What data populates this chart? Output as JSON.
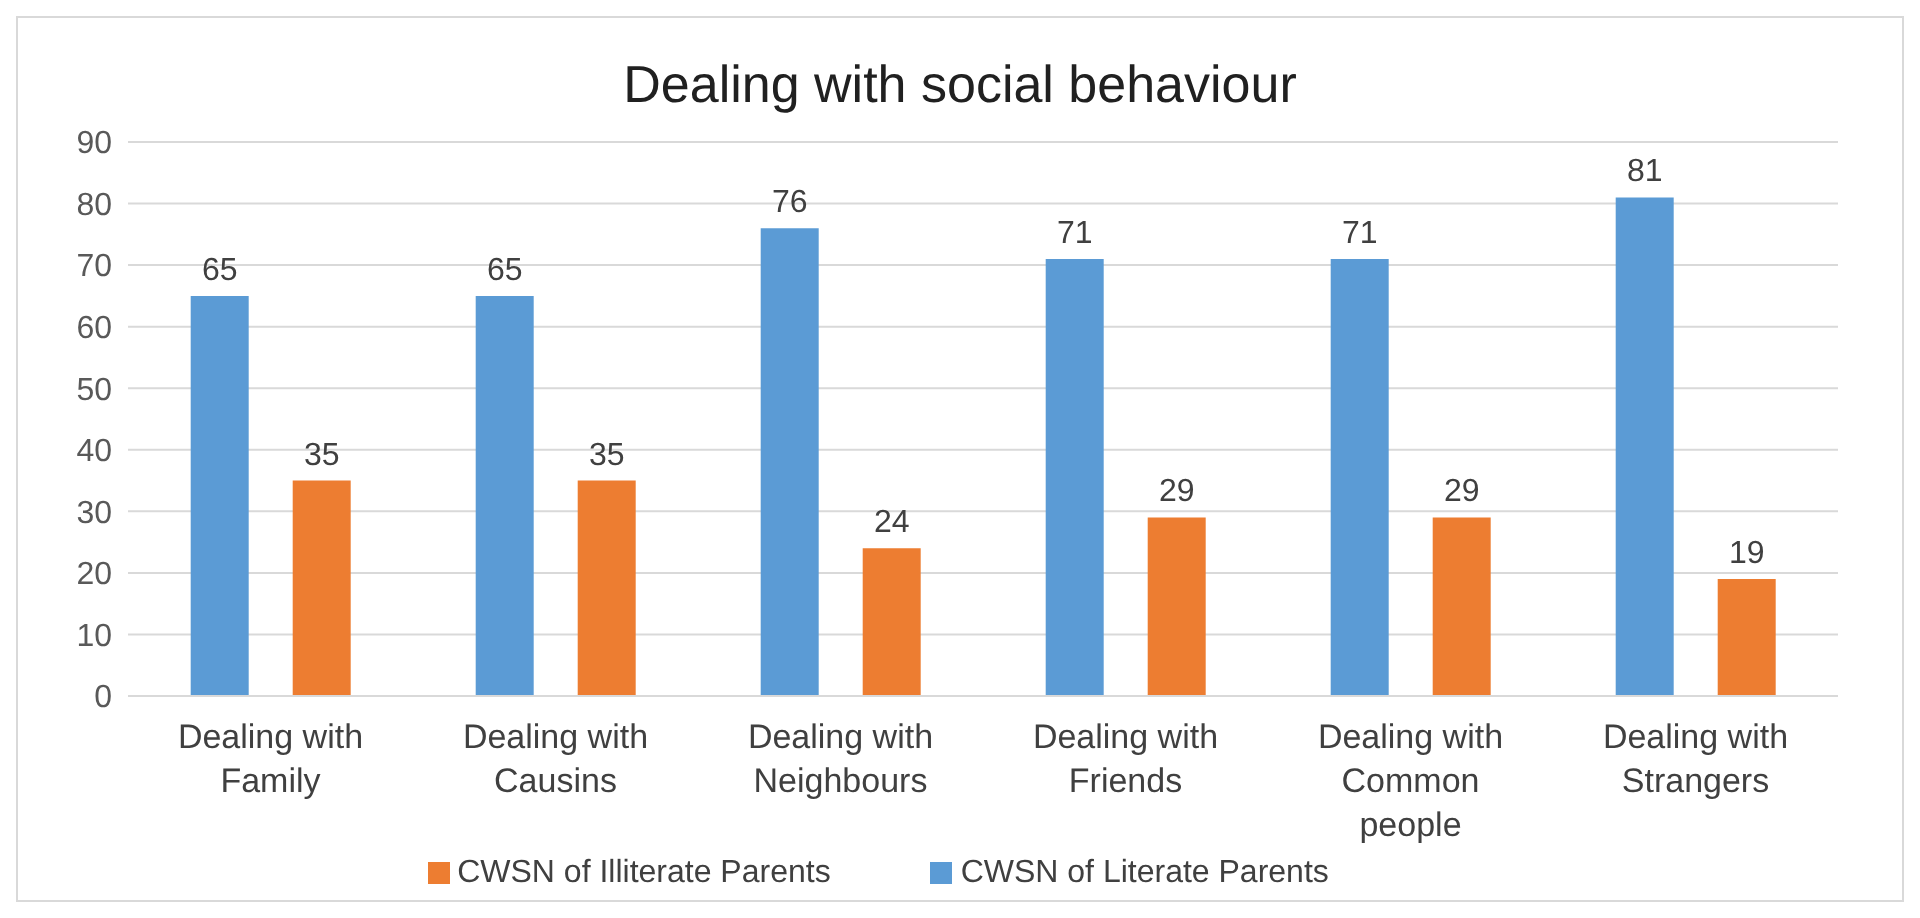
{
  "chart_data": {
    "type": "bar",
    "title": "Dealing with social behaviour",
    "categories": [
      "Dealing with Family",
      "Dealing with Causins",
      "Dealing with Neighbours",
      "Dealing with Friends",
      "Dealing with Common people",
      "Dealing with Strangers"
    ],
    "series": [
      {
        "name": "CWSN of Literate Parents",
        "color": "#5b9bd5",
        "values": [
          65,
          65,
          76,
          71,
          71,
          81
        ]
      },
      {
        "name": "CWSN of Illiterate Parents",
        "color": "#ed7d31",
        "values": [
          35,
          35,
          24,
          29,
          29,
          19
        ]
      }
    ],
    "ylim": [
      0,
      90
    ],
    "yticks": [
      0,
      10,
      20,
      30,
      40,
      50,
      60,
      70,
      80,
      90
    ],
    "grid": "y",
    "legend": "bottom",
    "data_labels": true
  }
}
